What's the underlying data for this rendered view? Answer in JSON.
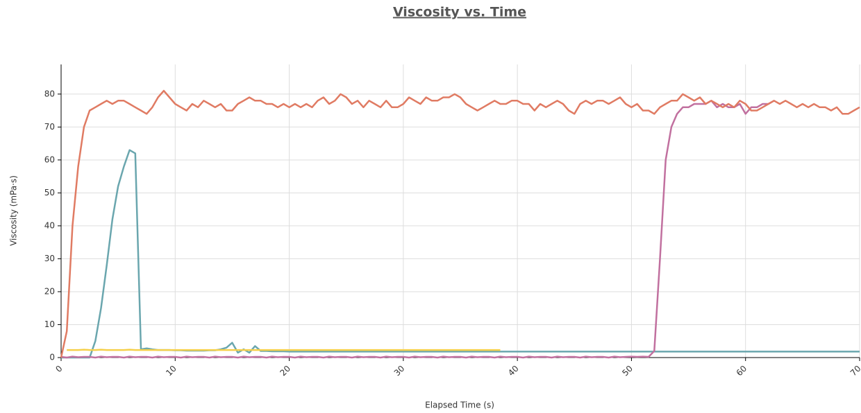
{
  "chart_data": {
    "type": "line",
    "title": "Viscosity vs. Time",
    "xlabel": "Elapsed Time (s)",
    "ylabel": "Viscosity (mPa·s)",
    "x": [
      0,
      0.5,
      1,
      1.5,
      2,
      2.5,
      3,
      3.5,
      4,
      4.5,
      5,
      5.5,
      6,
      6.5,
      7,
      7.5,
      8,
      8.5,
      9,
      9.5,
      10,
      10.5,
      11,
      11.5,
      12,
      12.5,
      13,
      13.5,
      14,
      14.5,
      15,
      15.5,
      16,
      16.5,
      17,
      17.5,
      18,
      18.5,
      19,
      19.5,
      20,
      20.5,
      21,
      21.5,
      22,
      22.5,
      23,
      23.5,
      24,
      24.5,
      25,
      25.5,
      26,
      26.5,
      27,
      27.5,
      28,
      28.5,
      29,
      29.5,
      30,
      30.5,
      31,
      31.5,
      32,
      32.5,
      33,
      33.5,
      34,
      34.5,
      35,
      35.5,
      36,
      36.5,
      37,
      37.5,
      38,
      38.5,
      39,
      39.5,
      40,
      40.5,
      41,
      41.5,
      42,
      42.5,
      43,
      43.5,
      44,
      44.5,
      45,
      45.5,
      46,
      46.5,
      47,
      47.5,
      48,
      48.5,
      49,
      49.5,
      50,
      50.5,
      51,
      51.5,
      52,
      52.5,
      53,
      53.5,
      54,
      54.5,
      55,
      55.5,
      56,
      56.5,
      57,
      57.5,
      58,
      58.5,
      59,
      59.5,
      60,
      60.5,
      61,
      61.5,
      62,
      62.5,
      63,
      63.5,
      64,
      64.5,
      65,
      65.5,
      66,
      66.5,
      67,
      67.5,
      68,
      68.5,
      69,
      69.5,
      70
    ],
    "series": [
      {
        "color": "#e07b63",
        "values": [
          0,
          8,
          40,
          58,
          70,
          75,
          76,
          77,
          78,
          77,
          78,
          78,
          77,
          76,
          75,
          74,
          76,
          79,
          81,
          79,
          77,
          76,
          75,
          77,
          76,
          78,
          77,
          76,
          77,
          75,
          75,
          77,
          78,
          79,
          78,
          78,
          77,
          77,
          76,
          77,
          76,
          77,
          76,
          77,
          76,
          78,
          79,
          77,
          78,
          80,
          79,
          77,
          78,
          76,
          78,
          77,
          76,
          78,
          76,
          76,
          77,
          79,
          78,
          77,
          79,
          78,
          78,
          79,
          79,
          80,
          79,
          77,
          76,
          75,
          76,
          77,
          78,
          77,
          77,
          78,
          78,
          77,
          77,
          75,
          77,
          76,
          77,
          78,
          77,
          75,
          74,
          77,
          78,
          77,
          78,
          78,
          77,
          78,
          79,
          77,
          76,
          77,
          75,
          75,
          74,
          76,
          77,
          78,
          78,
          80,
          79,
          78,
          79,
          77,
          78,
          77,
          76,
          77,
          76,
          78,
          77,
          75,
          75,
          76,
          77,
          78,
          77,
          78,
          77,
          76,
          77,
          76,
          77,
          76,
          76,
          75,
          76,
          74,
          74,
          75,
          76
        ]
      },
      {
        "color": "#6aa6ae",
        "values": [
          0,
          0,
          0,
          0,
          0,
          0,
          5,
          15,
          28,
          42,
          52,
          58,
          63,
          62,
          2.5,
          2.8,
          2.5,
          2.3,
          2.3,
          2.3,
          2.2,
          2.2,
          2.1,
          2.1,
          2.1,
          2.1,
          2.2,
          2.2,
          2.5,
          3,
          4.5,
          1.5,
          2.5,
          1.5,
          3.5,
          2,
          2,
          1.9,
          1.9,
          1.9,
          1.8,
          1.8,
          1.8,
          1.8,
          1.8,
          1.8,
          1.8,
          1.8,
          1.8,
          1.8,
          1.8,
          1.8,
          1.8,
          1.8,
          1.8,
          1.8,
          1.8,
          1.8,
          1.8,
          1.8,
          1.8,
          1.8,
          1.8,
          1.8,
          1.8,
          1.8,
          1.8,
          1.8,
          1.8,
          1.8,
          1.8,
          1.8,
          1.8,
          1.8,
          1.8,
          1.8,
          1.8,
          1.8,
          1.8,
          1.8,
          1.8,
          1.8,
          1.8,
          1.8,
          1.8,
          1.8,
          1.8,
          1.8,
          1.8,
          1.8,
          1.8,
          1.8,
          1.8,
          1.8,
          1.8,
          1.8,
          1.8,
          1.8,
          1.8,
          1.8,
          1.8,
          1.8,
          1.8,
          1.8,
          1.8,
          1.8,
          1.8,
          1.8,
          1.8,
          1.8,
          1.8,
          1.8,
          1.8,
          1.8,
          1.8,
          1.8,
          1.8,
          1.8,
          1.8,
          1.8,
          1.8,
          1.8,
          1.8,
          1.8,
          1.8,
          1.8,
          1.8,
          1.8,
          1.8,
          1.8,
          1.8,
          1.8,
          1.8,
          1.8,
          1.8,
          1.8,
          1.8,
          1.8,
          1.8,
          1.8,
          1.8
        ]
      },
      {
        "color": "#f5d04a",
        "values": [
          null,
          2.3,
          2.3,
          2.3,
          2.4,
          2.3,
          2.3,
          2.4,
          2.3,
          2.3,
          2.3,
          2.3,
          2.4,
          2.3,
          2.3,
          2.3,
          2.3,
          2.3,
          2.3,
          2.3,
          2.3,
          2.3,
          2.3,
          2.3,
          2.3,
          2.3,
          2.3,
          2.3,
          2.3,
          2.3,
          2.3,
          2.3,
          2.3,
          2.3,
          2.3,
          2.3,
          2.3,
          2.3,
          2.3,
          2.3,
          2.3,
          2.3,
          2.3,
          2.3,
          2.3,
          2.3,
          2.3,
          2.3,
          2.3,
          2.3,
          2.3,
          2.3,
          2.3,
          2.3,
          2.3,
          2.3,
          2.3,
          2.3,
          2.3,
          2.3,
          2.3,
          2.3,
          2.3,
          2.3,
          2.3,
          2.3,
          2.3,
          2.3,
          2.3,
          2.3,
          2.3,
          2.3,
          2.3,
          2.3,
          2.3,
          2.3,
          2.3,
          2.3,
          null,
          null,
          null,
          null,
          null,
          null,
          null,
          null,
          null,
          null,
          null,
          null,
          null,
          null,
          null,
          null,
          null,
          null,
          null,
          null,
          null,
          null,
          null,
          null,
          null,
          null,
          null,
          null,
          null,
          null,
          null,
          null,
          null,
          null,
          null,
          null,
          null,
          null,
          null,
          null,
          null,
          null,
          null,
          null,
          null,
          null,
          null,
          null,
          null,
          null,
          null,
          null,
          null,
          null,
          null,
          null,
          null,
          null,
          null,
          null,
          null,
          null,
          null
        ]
      },
      {
        "color": "#c1709f",
        "values": [
          0.2,
          0,
          0.3,
          0.1,
          0.2,
          0.2,
          0,
          0.3,
          0.1,
          0.2,
          0.2,
          0,
          0.3,
          0.1,
          0.2,
          0.2,
          0,
          0.3,
          0.1,
          0.2,
          0.2,
          0,
          0.3,
          0.1,
          0.2,
          0.2,
          0,
          0.3,
          0.1,
          0.2,
          0.2,
          0,
          0.3,
          0.1,
          0.2,
          0.2,
          0,
          0.3,
          0.1,
          0.2,
          0.2,
          0,
          0.3,
          0.1,
          0.2,
          0.2,
          0,
          0.3,
          0.1,
          0.2,
          0.2,
          0,
          0.3,
          0.1,
          0.2,
          0.2,
          0,
          0.3,
          0.1,
          0.2,
          0.2,
          0,
          0.3,
          0.1,
          0.2,
          0.2,
          0,
          0.3,
          0.1,
          0.2,
          0.2,
          0,
          0.3,
          0.1,
          0.2,
          0.2,
          0,
          0.3,
          0.1,
          0.2,
          0.2,
          0,
          0.3,
          0.1,
          0.2,
          0.2,
          0,
          0.3,
          0.1,
          0.2,
          0.2,
          0,
          0.3,
          0.1,
          0.2,
          0.2,
          0,
          0.3,
          0.1,
          0.2,
          0.3,
          0.2,
          0.3,
          0.2,
          2,
          30,
          60,
          70,
          74,
          76,
          76,
          77,
          77,
          77,
          78,
          76,
          77,
          76,
          76,
          77,
          74,
          76,
          76,
          77,
          77,
          78,
          null,
          null,
          null,
          null,
          null,
          null,
          null,
          null,
          null,
          null,
          null,
          null,
          null,
          null,
          null
        ]
      }
    ],
    "xlim": [
      0,
      70
    ],
    "xticks": [
      0,
      10,
      20,
      30,
      40,
      50,
      60,
      70
    ],
    "ylim": [
      0,
      89
    ],
    "yticks": [
      0,
      10,
      20,
      30,
      40,
      50,
      60,
      70,
      80
    ],
    "grid": true
  }
}
